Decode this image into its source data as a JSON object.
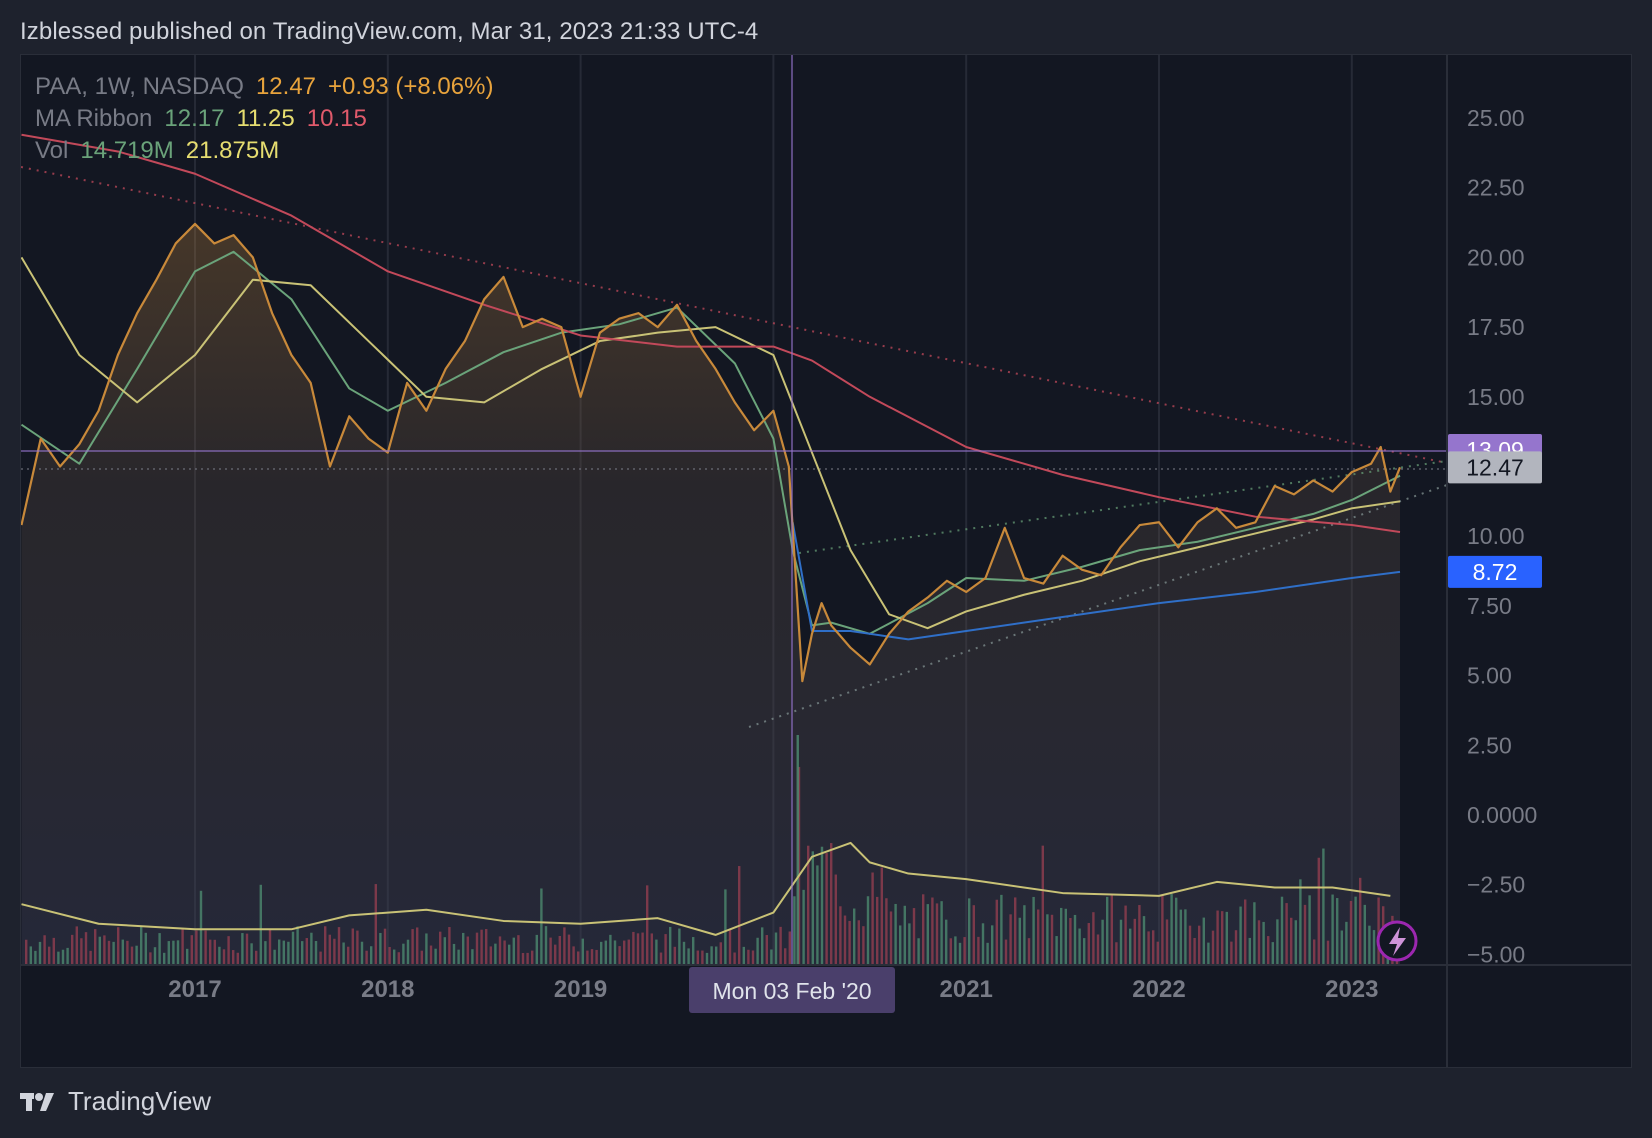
{
  "header": {
    "text": "Izblessed published on TradingView.com, Mar 31, 2023 21:33 UTC-4"
  },
  "legend": {
    "symbol": "PAA, 1W, NASDAQ",
    "last": "12.47",
    "change": "+0.93 (+8.06%)",
    "ma_label": "MA Ribbon",
    "ma1": "12.17",
    "ma2": "11.25",
    "ma3": "10.15",
    "vol_label": "Vol",
    "vol1": "14.719M",
    "vol2": "21.875M"
  },
  "crosshair": {
    "date_label": "Mon 03 Feb '20",
    "price": "13.09"
  },
  "footer": {
    "brand": "TradingView"
  },
  "colors": {
    "price": "#c8893a",
    "ma_fast": "#6aa37a",
    "ma_mid": "#c9c276",
    "ma_slow": "#c2495a",
    "ma_long": "#2f6fc8",
    "vol_up": "#4f8f73",
    "vol_down": "#9a3f52",
    "vol_ma": "#c9c276",
    "crosshair_badge": "#9575cd",
    "last_badge": "#9598a1",
    "blue_badge": "#2962ff"
  },
  "chart_data": {
    "type": "line",
    "title": "PAA, 1W, NASDAQ",
    "y_axis": {
      "ticks": [
        "25.00",
        "22.50",
        "20.00",
        "17.50",
        "15.00",
        "10.00",
        "7.50",
        "5.00",
        "2.50",
        "0.0000",
        "−2.50",
        "−5.00"
      ],
      "ylim": [
        -5,
        27
      ]
    },
    "x_axis": {
      "ticks": [
        "2017",
        "2018",
        "2019",
        "2021",
        "2022",
        "2023"
      ]
    },
    "price_badges": [
      {
        "label": "13.09",
        "value": 13.09,
        "kind": "crosshair"
      },
      {
        "label": "12.47",
        "value": 12.47,
        "kind": "last"
      },
      {
        "label": "8.72",
        "value": 8.72,
        "kind": "ma200"
      }
    ],
    "price_series": {
      "name": "PAA",
      "x": [
        2016.1,
        2016.2,
        2016.3,
        2016.4,
        2016.5,
        2016.6,
        2016.7,
        2016.8,
        2016.9,
        2017.0,
        2017.1,
        2017.2,
        2017.3,
        2017.4,
        2017.5,
        2017.6,
        2017.7,
        2017.8,
        2017.9,
        2018.0,
        2018.1,
        2018.2,
        2018.3,
        2018.4,
        2018.5,
        2018.6,
        2018.7,
        2018.8,
        2018.9,
        2019.0,
        2019.1,
        2019.2,
        2019.3,
        2019.4,
        2019.5,
        2019.6,
        2019.7,
        2019.8,
        2019.9,
        2020.0,
        2020.08,
        2020.15,
        2020.2,
        2020.25,
        2020.3,
        2020.4,
        2020.5,
        2020.6,
        2020.7,
        2020.8,
        2020.9,
        2021.0,
        2021.1,
        2021.2,
        2021.3,
        2021.4,
        2021.5,
        2021.6,
        2021.7,
        2021.8,
        2021.9,
        2022.0,
        2022.1,
        2022.2,
        2022.3,
        2022.4,
        2022.5,
        2022.6,
        2022.7,
        2022.8,
        2022.9,
        2023.0,
        2023.1,
        2023.15,
        2023.2,
        2023.25
      ],
      "values": [
        10.4,
        13.5,
        12.5,
        13.3,
        14.5,
        16.5,
        18.0,
        19.2,
        20.5,
        21.2,
        20.5,
        20.8,
        20.0,
        18.0,
        16.5,
        15.5,
        12.5,
        14.3,
        13.5,
        13.0,
        15.5,
        14.5,
        16.0,
        17.0,
        18.5,
        19.3,
        17.5,
        17.8,
        17.5,
        15.0,
        17.3,
        17.8,
        18.0,
        17.5,
        18.3,
        17.0,
        16.0,
        14.8,
        13.8,
        14.5,
        12.5,
        4.8,
        6.5,
        7.6,
        6.8,
        6.0,
        5.4,
        6.5,
        7.3,
        7.8,
        8.4,
        8.0,
        8.5,
        10.3,
        8.5,
        8.3,
        9.3,
        8.8,
        8.6,
        9.6,
        10.4,
        10.5,
        9.6,
        10.5,
        11.0,
        10.3,
        10.5,
        11.8,
        11.5,
        12.0,
        11.6,
        12.3,
        12.6,
        13.2,
        11.6,
        12.47
      ]
    },
    "ma_series": [
      {
        "name": "MA Ribbon 12.17",
        "color": "#6aa37a",
        "x": [
          2016.1,
          2016.4,
          2016.7,
          2017.0,
          2017.2,
          2017.5,
          2017.8,
          2018.0,
          2018.3,
          2018.6,
          2018.9,
          2019.2,
          2019.5,
          2019.8,
          2020.0,
          2020.1,
          2020.2,
          2020.3,
          2020.5,
          2020.8,
          2021.0,
          2021.3,
          2021.6,
          2021.9,
          2022.2,
          2022.5,
          2022.8,
          2023.0,
          2023.25
        ],
        "values": [
          14.0,
          12.6,
          16.0,
          19.5,
          20.2,
          18.5,
          15.3,
          14.5,
          15.5,
          16.6,
          17.3,
          17.6,
          18.2,
          16.2,
          13.5,
          9.5,
          6.8,
          6.9,
          6.5,
          7.6,
          8.5,
          8.4,
          8.9,
          9.5,
          9.8,
          10.3,
          10.8,
          11.3,
          12.17
        ]
      },
      {
        "name": "MA Ribbon 11.25",
        "color": "#c9c276",
        "x": [
          2016.1,
          2016.4,
          2016.7,
          2017.0,
          2017.3,
          2017.6,
          2017.9,
          2018.2,
          2018.5,
          2018.8,
          2019.1,
          2019.4,
          2019.7,
          2020.0,
          2020.2,
          2020.4,
          2020.6,
          2020.8,
          2021.0,
          2021.3,
          2021.6,
          2021.9,
          2022.2,
          2022.5,
          2022.8,
          2023.0,
          2023.25
        ],
        "values": [
          20.0,
          16.5,
          14.8,
          16.5,
          19.2,
          19.0,
          17.0,
          15.0,
          14.8,
          16.0,
          17.0,
          17.3,
          17.5,
          16.5,
          13.0,
          9.5,
          7.2,
          6.7,
          7.3,
          7.9,
          8.4,
          9.1,
          9.6,
          10.1,
          10.6,
          11.0,
          11.25
        ]
      },
      {
        "name": "MA Ribbon 10.15",
        "color": "#c2495a",
        "x": [
          2016.1,
          2016.6,
          2017.0,
          2017.5,
          2018.0,
          2018.5,
          2019.0,
          2019.5,
          2020.0,
          2020.2,
          2020.5,
          2021.0,
          2021.5,
          2022.0,
          2022.5,
          2023.0,
          2023.25
        ],
        "values": [
          24.4,
          23.8,
          23.0,
          21.5,
          19.5,
          18.3,
          17.2,
          16.8,
          16.8,
          16.3,
          15.0,
          13.2,
          12.2,
          11.4,
          10.7,
          10.4,
          10.15
        ]
      },
      {
        "name": "MA 8.72",
        "color": "#2f6fc8",
        "x": [
          2020.1,
          2020.2,
          2020.4,
          2020.7,
          2021.0,
          2021.5,
          2022.0,
          2022.5,
          2023.0,
          2023.25
        ],
        "values": [
          10.5,
          6.6,
          6.6,
          6.3,
          6.6,
          7.1,
          7.6,
          8.0,
          8.5,
          8.72
        ]
      }
    ],
    "volume_ma": {
      "x": [
        2016.1,
        2016.5,
        2017.0,
        2017.5,
        2017.8,
        2018.2,
        2018.6,
        2019.0,
        2019.4,
        2019.7,
        2020.0,
        2020.2,
        2020.4,
        2020.5,
        2020.7,
        2021.0,
        2021.5,
        2022.0,
        2022.3,
        2022.6,
        2022.9,
        2023.2
      ],
      "values": [
        -3.2,
        -3.9,
        -4.1,
        -4.1,
        -3.6,
        -3.4,
        -3.8,
        -3.9,
        -3.7,
        -4.3,
        -3.5,
        -1.5,
        -1.0,
        -1.7,
        -2.1,
        -2.3,
        -2.8,
        -2.9,
        -2.4,
        -2.6,
        -2.6,
        -2.9
      ]
    }
  }
}
